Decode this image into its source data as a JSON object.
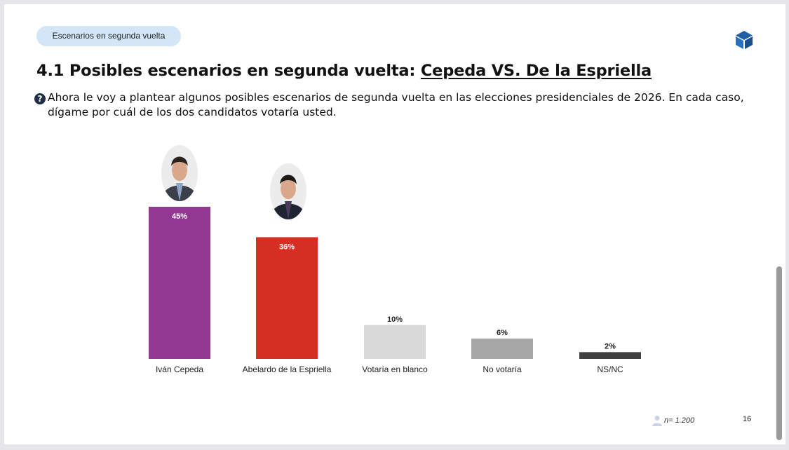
{
  "header": {
    "tag_label": "Escenarios en segunda vuelta",
    "title_prefix": "4.1 Posibles escenarios en segunda vuelta: ",
    "title_underlined": "Cepeda VS. De la Espriella"
  },
  "question": {
    "icon": "question-mark-icon",
    "text": "Ahora le voy a plantear algunos posibles escenarios de segunda vuelta en las elecciones presidenciales de 2026. En cada caso, dígame por cuál de los dos candidatos votaría usted."
  },
  "chart_data": {
    "type": "bar",
    "categories": [
      "Iván Cepeda",
      "Abelardo de la Espriella",
      "Votaría en blanco",
      "No votaría",
      "NS/NC"
    ],
    "values": [
      45,
      36,
      10,
      6,
      2
    ],
    "value_labels": [
      "45%",
      "36%",
      "10%",
      "6%",
      "2%"
    ],
    "colors": [
      "#933892",
      "#d52e23",
      "#d9d9d9",
      "#a6a6a6",
      "#404040"
    ],
    "title": "",
    "xlabel": "",
    "ylabel": "",
    "ylim": [
      0,
      45
    ],
    "grid": false,
    "legend": "none"
  },
  "footer": {
    "sample": "n= 1.200",
    "sample_icon": "person-icon",
    "page": "16"
  },
  "logo_icon": "cube-icon"
}
